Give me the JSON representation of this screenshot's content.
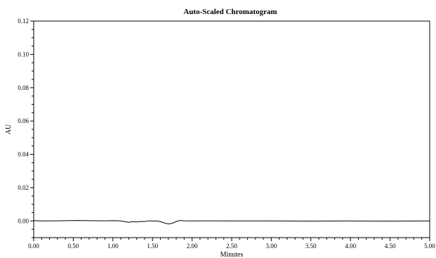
{
  "chart_data": {
    "type": "line",
    "title": "Auto-Scaled Chromatogram",
    "xlabel": "Minutes",
    "ylabel": "AU",
    "xlim": [
      0.0,
      5.0
    ],
    "ylim": [
      -0.01,
      0.12
    ],
    "x_ticks": [
      "0.00",
      "0.50",
      "1.00",
      "1.50",
      "2.00",
      "2.50",
      "3.00",
      "3.50",
      "4.00",
      "4.50",
      "5.00"
    ],
    "y_ticks": [
      "0.00",
      "0.02",
      "0.04",
      "0.06",
      "0.08",
      "0.10",
      "0.12"
    ],
    "grid": false,
    "series": [
      {
        "x": [
          0.0,
          0.1,
          0.3,
          0.55,
          0.7,
          0.9,
          1.0,
          1.1,
          1.2,
          1.25,
          1.3,
          1.35,
          1.4,
          1.45,
          1.5,
          1.55,
          1.6,
          1.65,
          1.7,
          1.75,
          1.8,
          1.85,
          1.9,
          2.0,
          2.2,
          2.5,
          3.0,
          3.5,
          4.0,
          4.5,
          5.0
        ],
        "y": [
          0.0002,
          0.0,
          0.0001,
          0.0003,
          0.0002,
          0.0001,
          0.0002,
          0.0,
          -0.0008,
          -0.0004,
          -0.0006,
          -0.0003,
          -0.0004,
          0.0001,
          -0.0001,
          0.0,
          -0.0004,
          -0.0012,
          -0.0018,
          -0.0014,
          -0.0003,
          0.0003,
          0.0001,
          0.0,
          0.0001,
          0.0,
          0.0,
          -0.0001,
          0.0,
          -0.0001,
          0.0
        ]
      }
    ]
  }
}
